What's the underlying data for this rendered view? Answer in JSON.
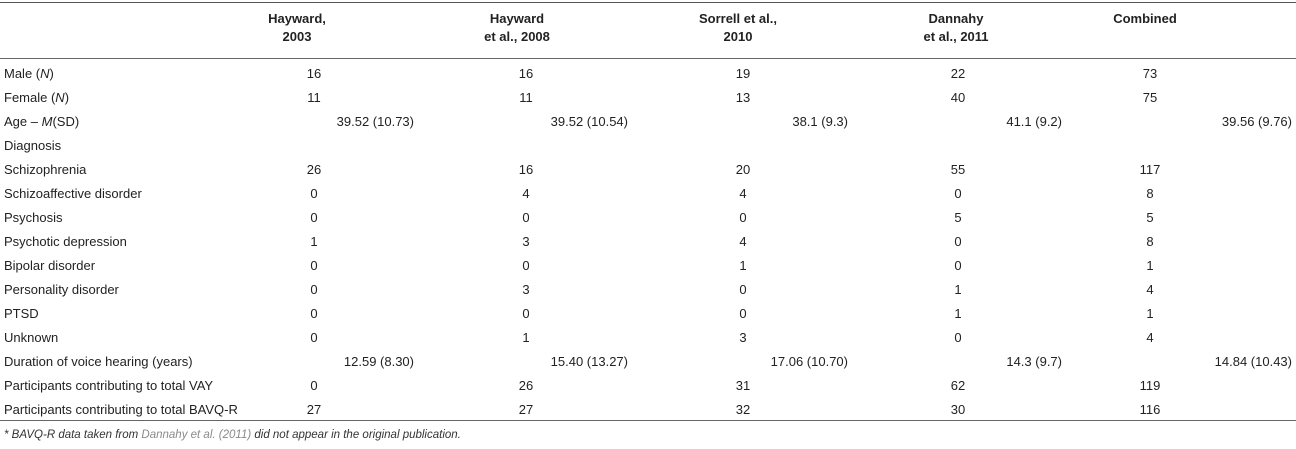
{
  "headers": [
    {
      "line1": "Hayward,",
      "line2": "2003"
    },
    {
      "line1": "Hayward",
      "line2": "et al., 2008"
    },
    {
      "line1": "Sorrell et al.,",
      "line2": "2010"
    },
    {
      "line1": "Dannahy",
      "line2": "et al., 2011"
    },
    {
      "line1": "Combined",
      "line2": ""
    }
  ],
  "rows": [
    {
      "label": "Male (N)",
      "type": "count",
      "values": [
        "16",
        "16",
        "19",
        "22",
        "73"
      ]
    },
    {
      "label": "Female (N)",
      "type": "count",
      "values": [
        "11",
        "11",
        "13",
        "40",
        "75"
      ]
    },
    {
      "label": "Age – M(SD)",
      "type": "msd",
      "values": [
        "39.52 (10.73)",
        "39.52 (10.54)",
        "38.1 (9.3)",
        "41.1 (9.2)",
        "39.56 (9.76)"
      ]
    },
    {
      "label": "Diagnosis",
      "type": "section",
      "values": []
    },
    {
      "label": "Schizophrenia",
      "type": "count",
      "values": [
        "26",
        "16",
        "20",
        "55",
        "117"
      ]
    },
    {
      "label": "Schizoaffective disorder",
      "type": "count",
      "values": [
        "0",
        "4",
        "4",
        "0",
        "8"
      ]
    },
    {
      "label": "Psychosis",
      "type": "count",
      "values": [
        "0",
        "0",
        "0",
        "5",
        "5"
      ]
    },
    {
      "label": "Psychotic depression",
      "type": "count",
      "values": [
        "1",
        "3",
        "4",
        "0",
        "8"
      ]
    },
    {
      "label": "Bipolar disorder",
      "type": "count",
      "values": [
        "0",
        "0",
        "1",
        "0",
        "1"
      ]
    },
    {
      "label": "Personality disorder",
      "type": "count",
      "values": [
        "0",
        "3",
        "0",
        "1",
        "4"
      ]
    },
    {
      "label": "PTSD",
      "type": "count",
      "values": [
        "0",
        "0",
        "0",
        "1",
        "1"
      ]
    },
    {
      "label": "Unknown",
      "type": "count",
      "values": [
        "0",
        "1",
        "3",
        "0",
        "4"
      ]
    },
    {
      "label": "Duration of voice hearing (years)",
      "type": "msd",
      "values": [
        "12.59 (8.30)",
        "15.40 (13.27)",
        "17.06 (10.70)",
        "14.3 (9.7)",
        "14.84 (10.43)"
      ]
    },
    {
      "label": "Participants contributing to total VAY",
      "type": "count",
      "values": [
        "0",
        "26",
        "31",
        "62",
        "119"
      ]
    },
    {
      "label": "Participants contributing to total BAVQ-R",
      "type": "count",
      "values": [
        "27",
        "27",
        "32",
        "30",
        "116"
      ]
    }
  ],
  "footnote": {
    "before": "* BAVQ-R data taken from ",
    "ref": "Dannahy et al. (2011)",
    "after": " did not appear in the original publication."
  }
}
